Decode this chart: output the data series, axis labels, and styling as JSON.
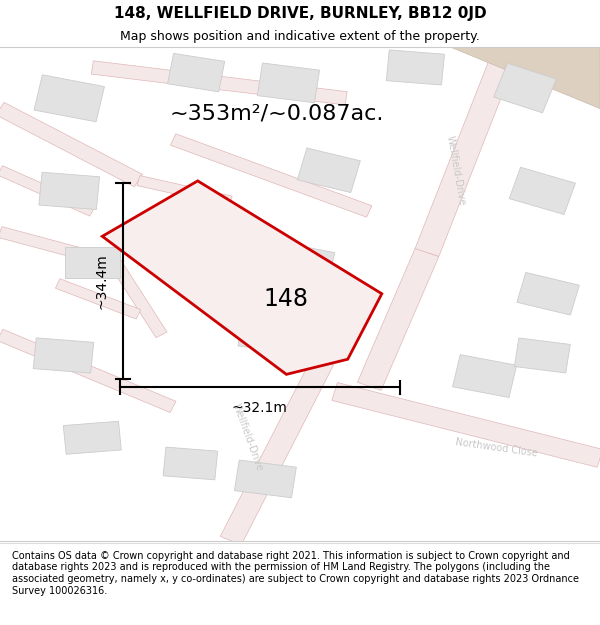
{
  "title": "148, WELLFIELD DRIVE, BURNLEY, BB12 0JD",
  "subtitle": "Map shows position and indicative extent of the property.",
  "area_text": "~353m²/~0.087ac.",
  "property_number": "148",
  "dim_width": "~32.1m",
  "dim_height": "~34.4m",
  "road_label_1": "Wellfield‑Drive",
  "road_label_2": "Wellfield‑Drive",
  "road_label_3": "Northwood Close",
  "footer": "Contains OS data © Crown copyright and database right 2021. This information is subject to Crown copyright and database rights 2023 and is reproduced with the permission of HM Land Registry. The polygons (including the associated geometry, namely x, y co-ordinates) are subject to Crown copyright and database rights 2023 Ordnance Survey 100026316.",
  "bg_color": "#f0f0ec",
  "road_fill": "#f5e8e8",
  "road_edge": "#e0b8b8",
  "building_color": "#e2e2e2",
  "building_edge": "#cccccc",
  "plot_fill": "#f8eeee",
  "plot_edge": "#cc0000",
  "tan_fill": "#ddd0c0",
  "tan_edge": "#ccbbaa",
  "title_fontsize": 11,
  "subtitle_fontsize": 9,
  "area_fontsize": 16,
  "property_fontsize": 17,
  "dim_fontsize": 10,
  "footer_fontsize": 7,
  "road_label_color": "#c8c8c8",
  "road_label_fontsize": 7
}
